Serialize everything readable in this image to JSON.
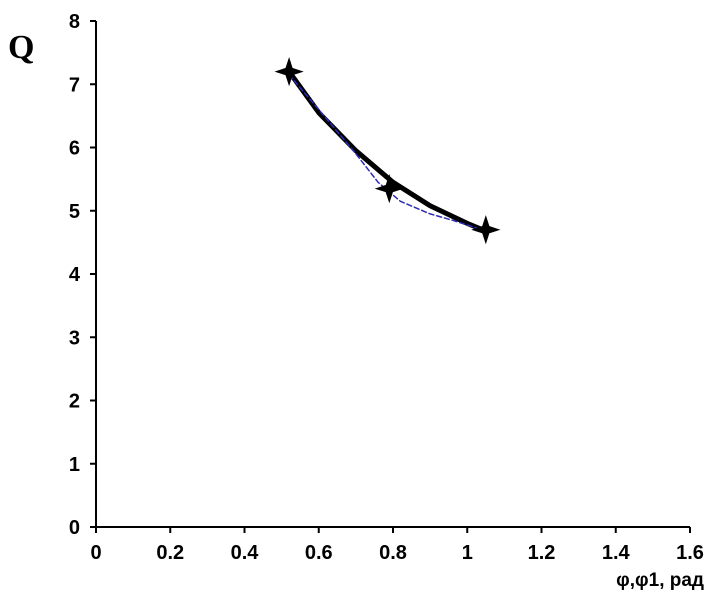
{
  "chart_data": {
    "type": "scatter",
    "ylabel": "Q",
    "xlabel": "φ,φ1, рад",
    "xlim": [
      0,
      1.6
    ],
    "ylim": [
      0,
      8
    ],
    "x_ticks": [
      "0",
      "0.2",
      "0.4",
      "0.6",
      "0.8",
      "1",
      "1.2",
      "1.4",
      "1.6"
    ],
    "y_ticks": [
      "0",
      "1",
      "2",
      "3",
      "4",
      "5",
      "6",
      "7",
      "8"
    ],
    "grid": false,
    "legend": "none",
    "series": [
      {
        "style": "markers",
        "marker": "star",
        "color": "#000000",
        "x": [
          0.52,
          0.79,
          1.05
        ],
        "y": [
          7.2,
          5.35,
          4.7
        ]
      },
      {
        "style": "line",
        "color": "#000000",
        "x": [
          0.52,
          0.6,
          0.7,
          0.8,
          0.9,
          1.0,
          1.05
        ],
        "y": [
          7.2,
          6.55,
          5.95,
          5.45,
          5.08,
          4.8,
          4.68
        ]
      },
      {
        "style": "dashed-line",
        "color": "#2b2bb8",
        "x": [
          0.52,
          0.6,
          0.7,
          0.76,
          0.82,
          0.9,
          0.96,
          1.05
        ],
        "y": [
          7.15,
          6.6,
          5.9,
          5.45,
          5.15,
          4.95,
          4.85,
          4.68
        ]
      }
    ]
  }
}
